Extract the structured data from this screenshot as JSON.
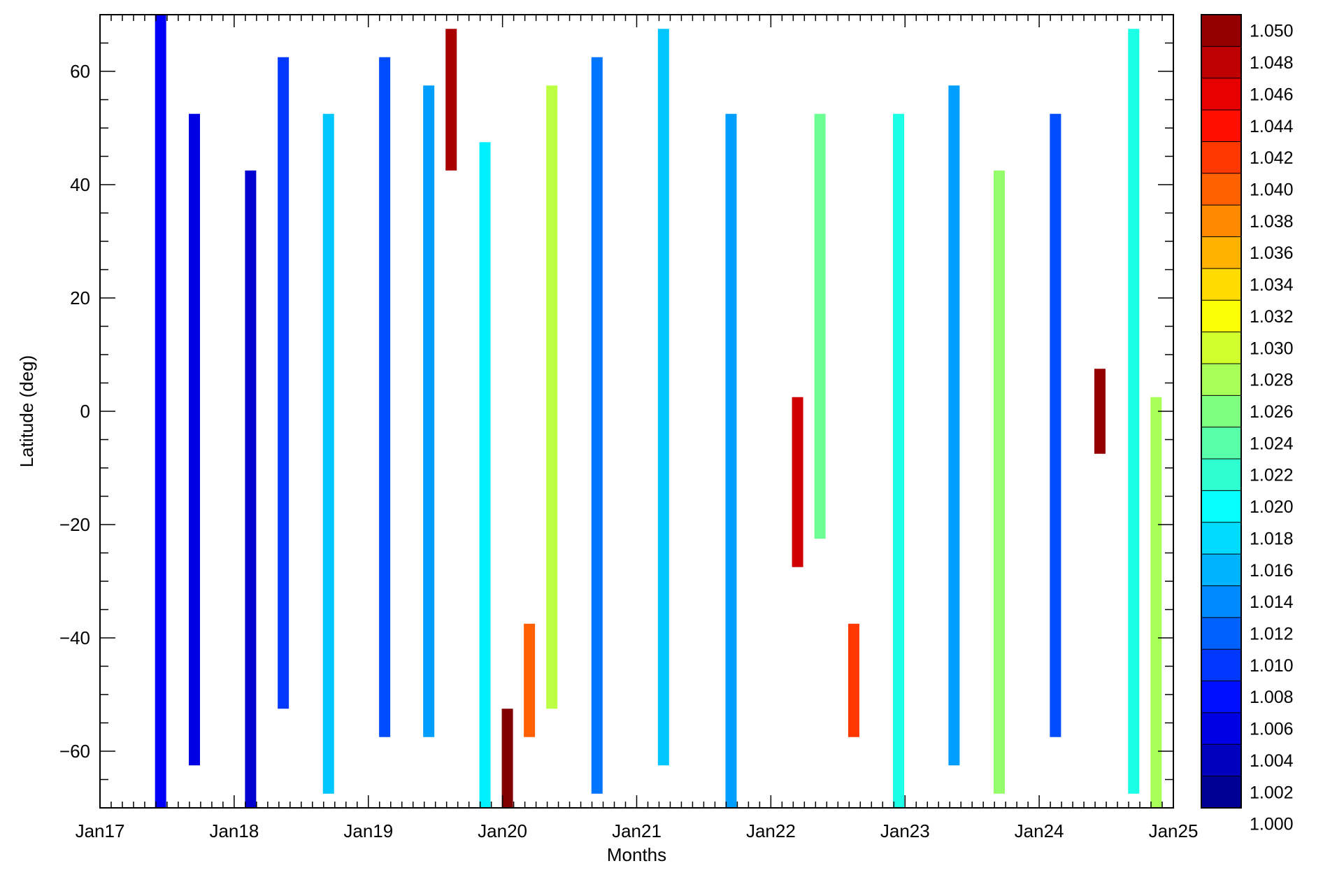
{
  "chart_data": {
    "type": "heatmap",
    "title": "",
    "xlabel": "Months",
    "ylabel": "Latitude (deg)",
    "x_range": [
      "2017-01-01",
      "2025-01-01"
    ],
    "x_tick_labels": [
      "Jan17",
      "Jan18",
      "Jan19",
      "Jan20",
      "Jan21",
      "Jan22",
      "Jan23",
      "Jan24",
      "Jan25"
    ],
    "ylim": [
      -70,
      70
    ],
    "y_ticks": [
      60,
      40,
      20,
      0,
      -20,
      -40,
      -60
    ],
    "y_tick_labels": [
      "60",
      "40",
      "20",
      "0",
      "−20",
      "−40",
      "−60"
    ],
    "colorbar": {
      "range": [
        1.0,
        1.05
      ],
      "tick_labels": [
        "1.050",
        "1.048",
        "1.046",
        "1.044",
        "1.042",
        "1.040",
        "1.038",
        "1.036",
        "1.034",
        "1.032",
        "1.030",
        "1.028",
        "1.026",
        "1.024",
        "1.022",
        "1.020",
        "1.018",
        "1.016",
        "1.014",
        "1.012",
        "1.010",
        "1.008",
        "1.006",
        "1.004",
        "1.002",
        "1.000"
      ],
      "colormap": "jet"
    },
    "cell_resolution": {
      "x": "monthly",
      "y_deg": 5
    },
    "series": [
      {
        "x": "2017-06-15",
        "lat": [
          -70,
          70
        ],
        "value": 1.006
      },
      {
        "x": "2017-09-15",
        "lat": [
          -60,
          50
        ],
        "value": 1.005
      },
      {
        "x": "2018-02-15",
        "lat": [
          -70,
          40
        ],
        "value": 1.004
      },
      {
        "x": "2018-05-15",
        "lat": [
          -50,
          60
        ],
        "value": 1.009
      },
      {
        "x": "2018-09-15",
        "lat": [
          -65,
          50
        ],
        "value": 1.016
      },
      {
        "x": "2019-02-15",
        "lat": [
          -55,
          60
        ],
        "value": 1.01
      },
      {
        "x": "2019-06-15",
        "lat": [
          -55,
          55
        ],
        "value": 1.014
      },
      {
        "x": "2019-08-15",
        "lat": [
          45,
          65
        ],
        "value": 1.048
      },
      {
        "x": "2019-11-15",
        "lat": [
          -70,
          45
        ],
        "value": 1.018
      },
      {
        "x": "2020-01-15",
        "lat": [
          -70,
          -55
        ],
        "value": 1.05
      },
      {
        "x": "2020-03-15",
        "lat": [
          -55,
          -40
        ],
        "value": 1.039
      },
      {
        "x": "2020-05-15",
        "lat": [
          -50,
          55
        ],
        "value": 1.028
      },
      {
        "x": "2020-09-15",
        "lat": [
          -65,
          60
        ],
        "value": 1.012
      },
      {
        "x": "2021-03-15",
        "lat": [
          -60,
          65
        ],
        "value": 1.016
      },
      {
        "x": "2021-09-15",
        "lat": [
          -70,
          50
        ],
        "value": 1.014
      },
      {
        "x": "2022-03-15",
        "lat": [
          -25,
          0
        ],
        "value": 1.046
      },
      {
        "x": "2022-05-15",
        "lat": [
          -20,
          50
        ],
        "value": 1.024
      },
      {
        "x": "2022-08-15",
        "lat": [
          -55,
          -40
        ],
        "value": 1.041
      },
      {
        "x": "2022-12-15",
        "lat": [
          -70,
          50
        ],
        "value": 1.02
      },
      {
        "x": "2023-05-15",
        "lat": [
          -60,
          55
        ],
        "value": 1.014
      },
      {
        "x": "2023-09-15",
        "lat": [
          -65,
          40
        ],
        "value": 1.026
      },
      {
        "x": "2024-02-15",
        "lat": [
          -55,
          50
        ],
        "value": 1.01
      },
      {
        "x": "2024-06-15",
        "lat": [
          -5,
          5
        ],
        "value": 1.049
      },
      {
        "x": "2024-09-15",
        "lat": [
          -65,
          65
        ],
        "value": 1.02
      },
      {
        "x": "2024-11-15",
        "lat": [
          -70,
          0
        ],
        "value": 1.027
      }
    ]
  }
}
